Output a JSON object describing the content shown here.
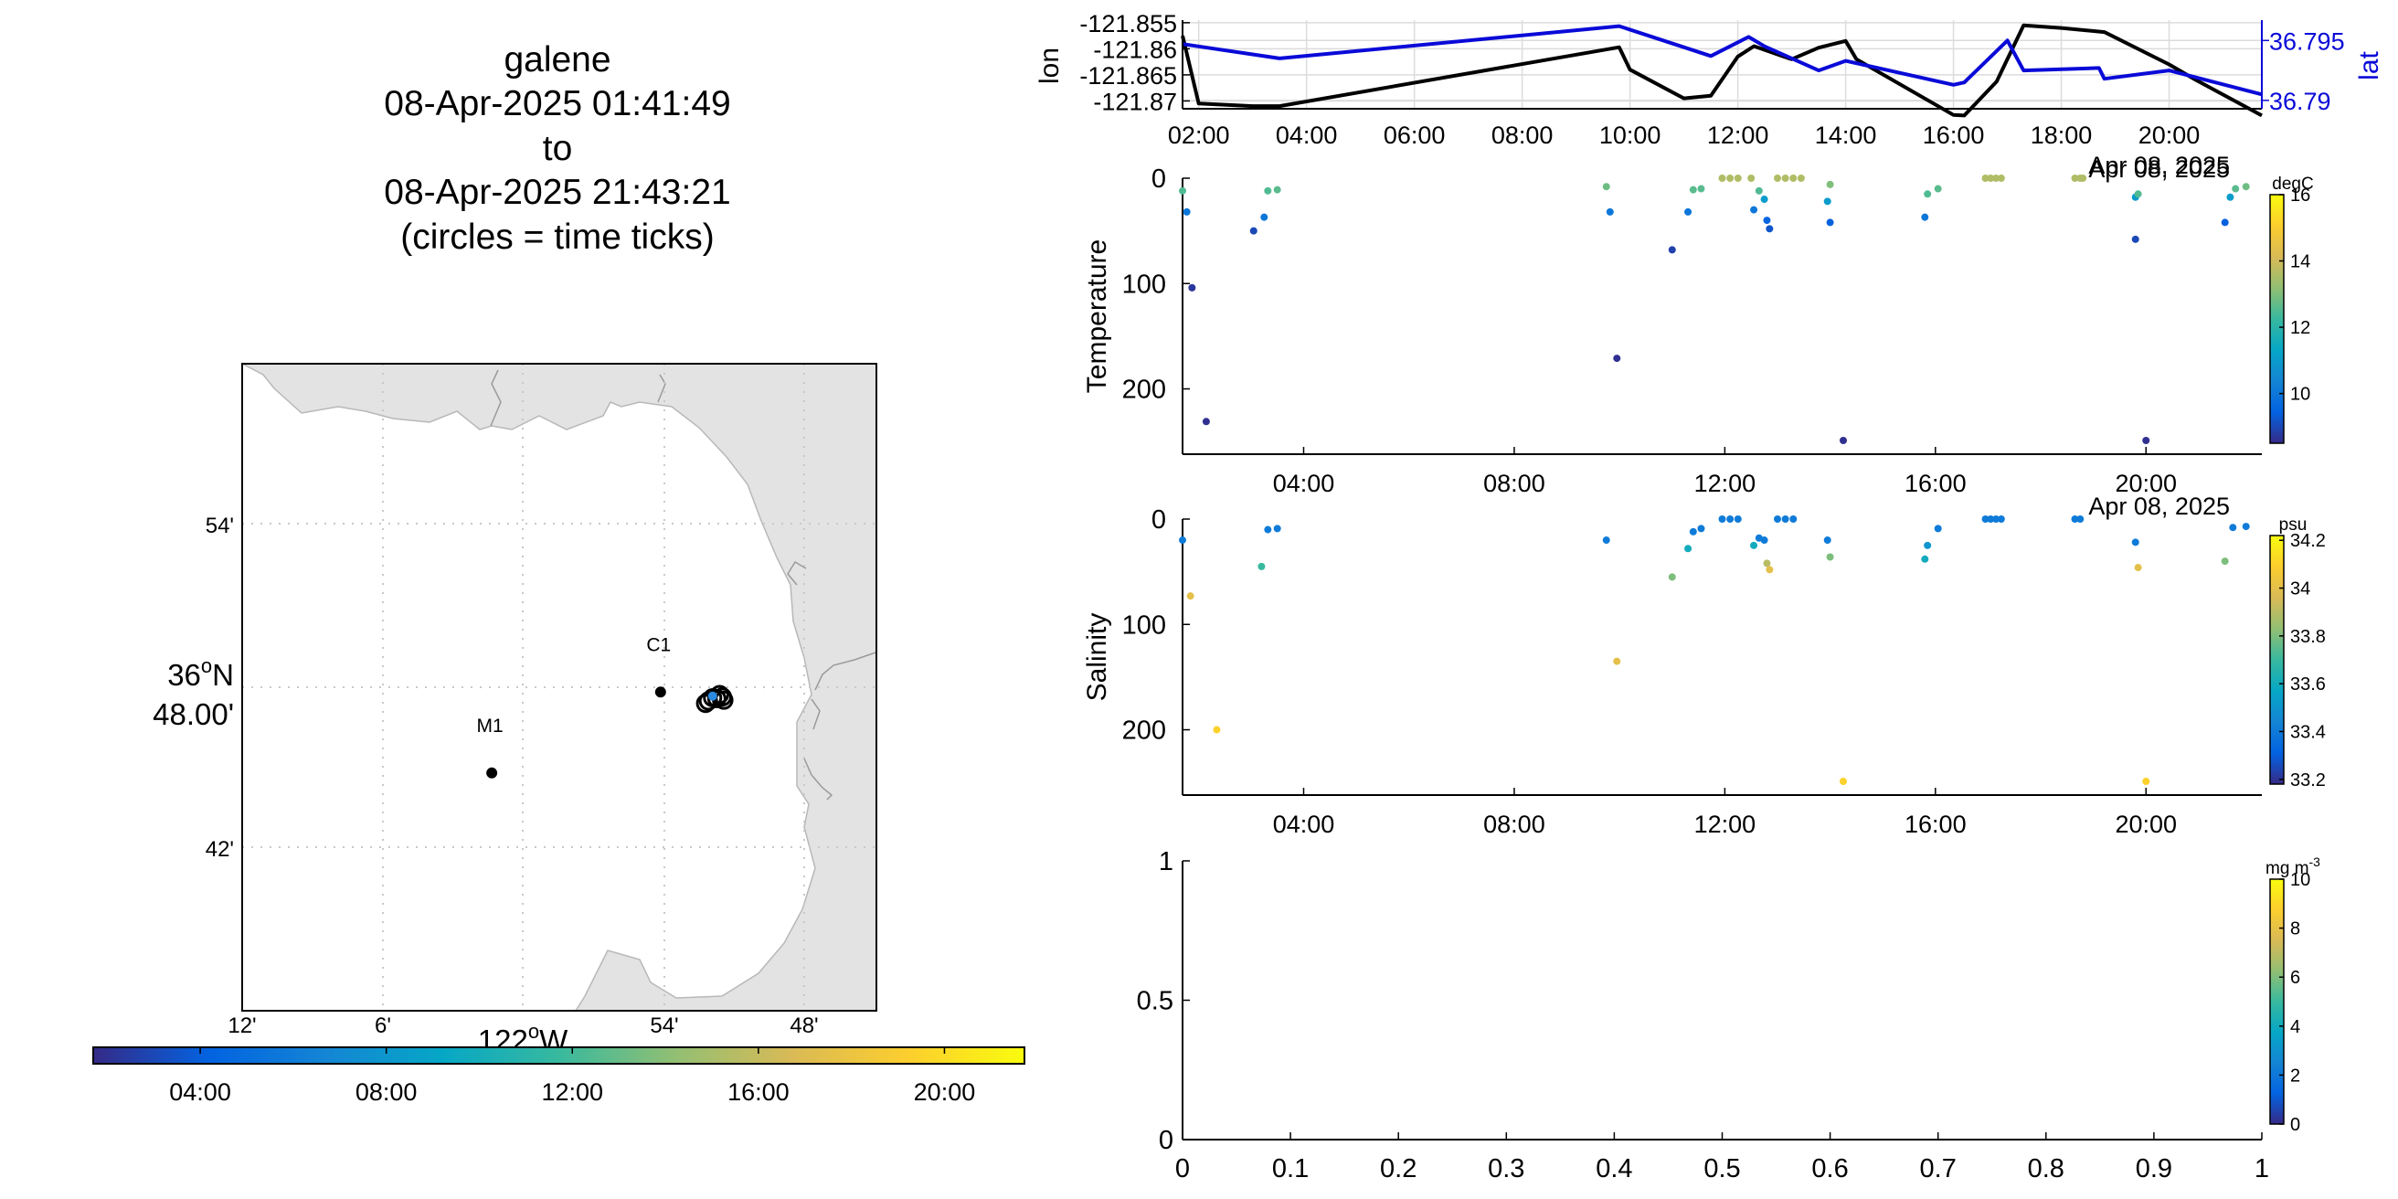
{
  "title": {
    "platform": "galene",
    "start": "08-Apr-2025 01:41:49",
    "to": "to",
    "end": "08-Apr-2025 21:43:21",
    "note": "(circles = time ticks)"
  },
  "colors": {
    "land": "#e3e3e3",
    "coast": "#b8b8b8",
    "lon_line": "#000000",
    "lat_line": "#0a0ad8",
    "colormap": [
      "#352a87",
      "#0363e1",
      "#1485d4",
      "#06a7c6",
      "#38b99e",
      "#92bf73",
      "#d9ba56",
      "#fcce2e",
      "#f9fb0e"
    ]
  },
  "map": {
    "lat_ticks": [
      "54'",
      "42'"
    ],
    "lat_center_label": [
      "36",
      "o",
      "N",
      "48.00'"
    ],
    "lon_ticks": [
      "12'",
      "6'",
      "54'",
      "48'"
    ],
    "lon_center_label": [
      "122",
      "o",
      "W"
    ],
    "stations": [
      {
        "name": "M1",
        "lon": -122.022,
        "lat": 36.747
      },
      {
        "name": "C1",
        "lon": -121.902,
        "lat": 36.797
      }
    ],
    "track_lon": [
      -121.87,
      -121.865,
      -121.86,
      -121.858,
      -121.857,
      -121.868,
      -121.862
    ],
    "track_lat": [
      36.79,
      36.7935,
      36.7955,
      36.794,
      36.792,
      36.7915,
      36.793
    ],
    "colorbar_ticks": [
      "04:00",
      "08:00",
      "12:00",
      "16:00",
      "20:00"
    ]
  },
  "chart_data": [
    {
      "type": "line",
      "title": "",
      "xlabel": "",
      "ylabel": "lon",
      "y2label": "lat",
      "x_ticks": [
        "02:00",
        "04:00",
        "06:00",
        "08:00",
        "10:00",
        "12:00",
        "14:00",
        "16:00",
        "18:00",
        "20:00"
      ],
      "date_label": "Apr 08, 2025",
      "y_ticks": [
        "-121.855",
        "-121.86",
        "-121.865",
        "-121.87"
      ],
      "y2_ticks": [
        "36.795",
        "36.79"
      ],
      "ylim": [
        -121.8715,
        -121.8545
      ],
      "y2lim": [
        36.7893,
        36.7967
      ],
      "series": [
        {
          "name": "lon",
          "x": [
            1.7,
            2.0,
            3.0,
            3.5,
            9.8,
            10.0,
            11.0,
            11.5,
            12.0,
            12.3,
            12.8,
            13.0,
            13.5,
            14.0,
            14.2,
            16.0,
            16.2,
            16.8,
            17.3,
            18.0,
            18.8,
            20.0,
            20.5,
            21.72
          ],
          "values": [
            -121.8575,
            -121.8705,
            -121.871,
            -121.871,
            -121.8597,
            -121.864,
            -121.8695,
            -121.869,
            -121.8615,
            -121.8595,
            -121.8613,
            -121.862,
            -121.8598,
            -121.8585,
            -121.862,
            -121.8727,
            -121.8728,
            -121.8663,
            -121.8555,
            -121.856,
            -121.8568,
            -121.863,
            -121.866,
            -121.8728
          ]
        },
        {
          "name": "lat",
          "x": [
            1.7,
            3.5,
            9.8,
            11.5,
            12.2,
            12.5,
            13.0,
            13.5,
            14.0,
            16.0,
            16.2,
            17.0,
            17.3,
            18.7,
            18.8,
            20.0,
            21.72
          ],
          "values": [
            36.7947,
            36.7935,
            36.7962,
            36.7937,
            36.7953,
            36.7945,
            36.7935,
            36.7925,
            36.7933,
            36.7913,
            36.7915,
            36.795,
            36.7925,
            36.7927,
            36.7918,
            36.7925,
            36.7905
          ]
        }
      ]
    },
    {
      "type": "scatter",
      "title": "",
      "xlabel": "",
      "ylabel": "Temperature",
      "colorbar_label": "degC",
      "x_ticks": [
        "04:00",
        "08:00",
        "12:00",
        "16:00",
        "20:00"
      ],
      "date_label": "Apr 08, 2025",
      "y_ticks": [
        "0",
        "100",
        "200"
      ],
      "ylim": [
        0,
        262
      ],
      "xlim": [
        1.7,
        22.2
      ],
      "clim": [
        8.5,
        16
      ],
      "colorbar_ticks": [
        "10",
        "12",
        "14",
        "16"
      ],
      "points": [
        {
          "x": 1.7,
          "y": 12,
          "v": 12.5
        },
        {
          "x": 1.78,
          "y": 32,
          "v": 10.0
        },
        {
          "x": 1.88,
          "y": 104,
          "v": 8.7
        },
        {
          "x": 2.15,
          "y": 231,
          "v": 8.6
        },
        {
          "x": 3.05,
          "y": 50,
          "v": 9.0
        },
        {
          "x": 3.25,
          "y": 37,
          "v": 10.0
        },
        {
          "x": 3.32,
          "y": 12,
          "v": 12.5
        },
        {
          "x": 3.5,
          "y": 11,
          "v": 12.6
        },
        {
          "x": 9.75,
          "y": 8,
          "v": 12.8
        },
        {
          "x": 9.82,
          "y": 32,
          "v": 10.0
        },
        {
          "x": 9.95,
          "y": 171,
          "v": 8.6
        },
        {
          "x": 11.0,
          "y": 68,
          "v": 8.9
        },
        {
          "x": 11.3,
          "y": 32,
          "v": 10.0
        },
        {
          "x": 11.4,
          "y": 11,
          "v": 12.6
        },
        {
          "x": 11.55,
          "y": 10,
          "v": 12.6
        },
        {
          "x": 11.95,
          "y": 0,
          "v": 13.6
        },
        {
          "x": 12.1,
          "y": 0,
          "v": 13.6
        },
        {
          "x": 12.25,
          "y": 0,
          "v": 13.6
        },
        {
          "x": 12.5,
          "y": 0,
          "v": 13.6
        },
        {
          "x": 12.55,
          "y": 30,
          "v": 10.0
        },
        {
          "x": 12.65,
          "y": 12,
          "v": 12.5
        },
        {
          "x": 12.75,
          "y": 20,
          "v": 11.0
        },
        {
          "x": 12.8,
          "y": 40,
          "v": 9.5
        },
        {
          "x": 12.85,
          "y": 48,
          "v": 9.2
        },
        {
          "x": 13.0,
          "y": 0,
          "v": 13.6
        },
        {
          "x": 13.15,
          "y": 0,
          "v": 13.6
        },
        {
          "x": 13.3,
          "y": 0,
          "v": 13.6
        },
        {
          "x": 13.45,
          "y": 0,
          "v": 13.6
        },
        {
          "x": 13.95,
          "y": 22,
          "v": 11.0
        },
        {
          "x": 14.0,
          "y": 42,
          "v": 9.4
        },
        {
          "x": 14.0,
          "y": 6,
          "v": 13.0
        },
        {
          "x": 14.25,
          "y": 249,
          "v": 8.6
        },
        {
          "x": 15.8,
          "y": 37,
          "v": 10.0
        },
        {
          "x": 15.85,
          "y": 15,
          "v": 12.5
        },
        {
          "x": 16.05,
          "y": 10,
          "v": 12.6
        },
        {
          "x": 16.95,
          "y": 0,
          "v": 13.6
        },
        {
          "x": 17.05,
          "y": 0,
          "v": 13.6
        },
        {
          "x": 17.15,
          "y": 0,
          "v": 13.6
        },
        {
          "x": 17.25,
          "y": 0,
          "v": 13.6
        },
        {
          "x": 18.65,
          "y": 0,
          "v": 13.6
        },
        {
          "x": 18.75,
          "y": 0,
          "v": 13.6
        },
        {
          "x": 18.8,
          "y": 0,
          "v": 13.6
        },
        {
          "x": 19.8,
          "y": 58,
          "v": 9.0
        },
        {
          "x": 19.8,
          "y": 18,
          "v": 11.0
        },
        {
          "x": 19.85,
          "y": 15,
          "v": 12.5
        },
        {
          "x": 20.0,
          "y": 249,
          "v": 8.6
        },
        {
          "x": 21.5,
          "y": 42,
          "v": 9.4
        },
        {
          "x": 21.6,
          "y": 18,
          "v": 11.0
        },
        {
          "x": 21.7,
          "y": 10,
          "v": 12.6
        },
        {
          "x": 21.9,
          "y": 8,
          "v": 12.8
        }
      ]
    },
    {
      "type": "scatter",
      "title": "",
      "xlabel": "",
      "ylabel": "Salinity",
      "colorbar_label": "psu",
      "x_ticks": [
        "04:00",
        "08:00",
        "12:00",
        "16:00",
        "20:00"
      ],
      "date_label": "Apr 08, 2025",
      "y_ticks": [
        "0",
        "100",
        "200"
      ],
      "ylim": [
        0,
        262
      ],
      "xlim": [
        1.7,
        22.2
      ],
      "clim": [
        33.18,
        34.22
      ],
      "colorbar_ticks": [
        "33.2",
        "33.4",
        "33.6",
        "33.8",
        "34",
        "34.2"
      ],
      "points": [
        {
          "x": 1.7,
          "y": 20,
          "v": 33.4
        },
        {
          "x": 1.85,
          "y": 73,
          "v": 34.0
        },
        {
          "x": 2.35,
          "y": 200,
          "v": 34.1
        },
        {
          "x": 3.2,
          "y": 45,
          "v": 33.7
        },
        {
          "x": 3.32,
          "y": 10,
          "v": 33.4
        },
        {
          "x": 3.5,
          "y": 9,
          "v": 33.4
        },
        {
          "x": 9.75,
          "y": 20,
          "v": 33.4
        },
        {
          "x": 9.95,
          "y": 135,
          "v": 34.0
        },
        {
          "x": 11.0,
          "y": 55,
          "v": 33.8
        },
        {
          "x": 11.3,
          "y": 28,
          "v": 33.6
        },
        {
          "x": 11.4,
          "y": 12,
          "v": 33.4
        },
        {
          "x": 11.55,
          "y": 9,
          "v": 33.4
        },
        {
          "x": 11.95,
          "y": 0,
          "v": 33.4
        },
        {
          "x": 12.1,
          "y": 0,
          "v": 33.4
        },
        {
          "x": 12.25,
          "y": 0,
          "v": 33.4
        },
        {
          "x": 12.55,
          "y": 25,
          "v": 33.6
        },
        {
          "x": 12.65,
          "y": 18,
          "v": 33.4
        },
        {
          "x": 12.75,
          "y": 20,
          "v": 33.4
        },
        {
          "x": 12.8,
          "y": 42,
          "v": 33.9
        },
        {
          "x": 12.85,
          "y": 48,
          "v": 34.0
        },
        {
          "x": 13.0,
          "y": 0,
          "v": 33.4
        },
        {
          "x": 13.15,
          "y": 0,
          "v": 33.4
        },
        {
          "x": 13.3,
          "y": 0,
          "v": 33.4
        },
        {
          "x": 13.95,
          "y": 20,
          "v": 33.4
        },
        {
          "x": 14.0,
          "y": 36,
          "v": 33.8
        },
        {
          "x": 14.25,
          "y": 249,
          "v": 34.1
        },
        {
          "x": 15.8,
          "y": 38,
          "v": 33.6
        },
        {
          "x": 15.85,
          "y": 25,
          "v": 33.5
        },
        {
          "x": 16.05,
          "y": 9,
          "v": 33.4
        },
        {
          "x": 16.95,
          "y": 0,
          "v": 33.4
        },
        {
          "x": 17.05,
          "y": 0,
          "v": 33.4
        },
        {
          "x": 17.15,
          "y": 0,
          "v": 33.4
        },
        {
          "x": 17.25,
          "y": 0,
          "v": 33.4
        },
        {
          "x": 18.65,
          "y": 0,
          "v": 33.4
        },
        {
          "x": 18.75,
          "y": 0,
          "v": 33.4
        },
        {
          "x": 19.8,
          "y": 22,
          "v": 33.4
        },
        {
          "x": 19.85,
          "y": 46,
          "v": 34.0
        },
        {
          "x": 20.0,
          "y": 249,
          "v": 34.1
        },
        {
          "x": 21.5,
          "y": 40,
          "v": 33.8
        },
        {
          "x": 21.65,
          "y": 8,
          "v": 33.4
        },
        {
          "x": 21.9,
          "y": 7,
          "v": 33.4
        }
      ]
    },
    {
      "type": "scatter",
      "title": "",
      "xlabel": "",
      "ylabel": "",
      "colorbar_label": "mg m",
      "colorbar_label_exp": "-3",
      "x_ticks": [
        "0",
        "0.1",
        "0.2",
        "0.3",
        "0.4",
        "0.5",
        "0.6",
        "0.7",
        "0.8",
        "0.9",
        "1"
      ],
      "y_ticks": [
        "0",
        "0.5",
        "1"
      ],
      "xlim": [
        0,
        1
      ],
      "ylim": [
        0,
        1
      ],
      "clim": [
        0,
        10
      ],
      "colorbar_ticks": [
        "0",
        "2",
        "4",
        "6",
        "8",
        "10"
      ],
      "points": []
    }
  ]
}
